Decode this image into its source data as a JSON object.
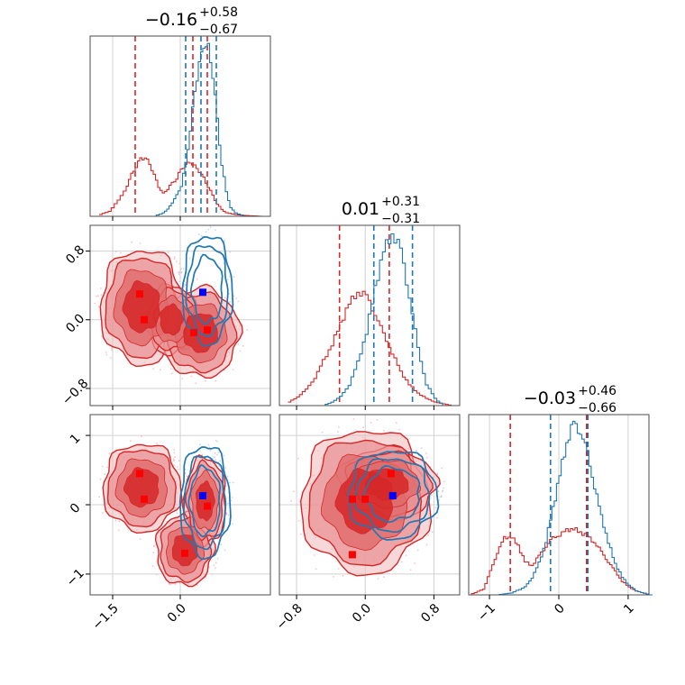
{
  "colors": {
    "red": "#d62728",
    "blue": "#1f77b4",
    "red_marker": "#ff0000",
    "blue_marker": "#0000ff",
    "grid": "#d0d0d0",
    "pink_points": "#f7a8b8",
    "lightblue_points": "#a9c6e8"
  },
  "chart_data": {
    "type": "corner",
    "params": [
      {
        "title": {
          "main": "−0.16",
          "sup": "+0.58",
          "sub": "−0.67"
        },
        "range": [
          -2.0,
          2.0
        ],
        "ticks": [
          -1.5,
          0.0
        ],
        "tick_labels": [
          "−1.5",
          "0.0"
        ]
      },
      {
        "title": {
          "main": "0.01",
          "sup": "+0.31",
          "sub": "−0.31"
        },
        "range": [
          -1.0,
          1.1
        ],
        "ticks": [
          -0.8,
          0.0,
          0.8
        ],
        "tick_labels": [
          "−0.8",
          "0.0",
          "0.8"
        ]
      },
      {
        "title": {
          "main": "−0.03",
          "sup": "+0.46",
          "sub": "−0.66"
        },
        "range": [
          -1.3,
          1.3
        ],
        "ticks": [
          -1,
          0,
          1
        ],
        "tick_labels": [
          "−1",
          "0",
          "1"
        ]
      }
    ],
    "diagonal": [
      {
        "param": 0,
        "red": {
          "x": [
            -1.8,
            -1.6,
            -1.4,
            -1.2,
            -1.1,
            -1.0,
            -0.9,
            -0.8,
            -0.7,
            -0.6,
            -0.5,
            -0.4,
            -0.3,
            -0.2,
            -0.1,
            0.0,
            0.1,
            0.2,
            0.3,
            0.4,
            0.5,
            0.6,
            0.7,
            0.8,
            0.9,
            1.0,
            1.2,
            1.4,
            1.6,
            1.8
          ],
          "y": [
            0.01,
            0.03,
            0.09,
            0.18,
            0.24,
            0.29,
            0.33,
            0.34,
            0.3,
            0.24,
            0.17,
            0.13,
            0.16,
            0.19,
            0.22,
            0.27,
            0.3,
            0.31,
            0.29,
            0.26,
            0.22,
            0.17,
            0.12,
            0.07,
            0.04,
            0.02,
            0.01,
            0.005,
            0.002,
            0.0
          ],
          "quantiles": [
            -1.0,
            0.28,
            0.6
          ]
        },
        "blue": {
          "x": [
            -0.6,
            -0.4,
            -0.3,
            -0.2,
            -0.1,
            0.0,
            0.1,
            0.2,
            0.3,
            0.4,
            0.5,
            0.6,
            0.7,
            0.8,
            0.9,
            1.0,
            1.1,
            1.2,
            1.4
          ],
          "y": [
            0.0,
            0.02,
            0.04,
            0.08,
            0.12,
            0.18,
            0.3,
            0.5,
            0.72,
            0.88,
            0.99,
            0.97,
            0.82,
            0.55,
            0.3,
            0.14,
            0.05,
            0.02,
            0.0
          ],
          "quantiles": [
            0.12,
            0.46,
            0.8
          ]
        }
      },
      {
        "param": 1,
        "red": {
          "x": [
            -0.9,
            -0.8,
            -0.7,
            -0.6,
            -0.5,
            -0.4,
            -0.3,
            -0.2,
            -0.1,
            0.0,
            0.1,
            0.2,
            0.3,
            0.4,
            0.5,
            0.6,
            0.7,
            0.8,
            0.9,
            1.0
          ],
          "y": [
            0.02,
            0.05,
            0.09,
            0.16,
            0.25,
            0.35,
            0.46,
            0.58,
            0.64,
            0.62,
            0.52,
            0.4,
            0.3,
            0.19,
            0.12,
            0.07,
            0.04,
            0.02,
            0.01,
            0.0
          ],
          "quantiles": [
            -0.3,
            0.28
          ]
        },
        "blue": {
          "x": [
            -0.5,
            -0.4,
            -0.3,
            -0.2,
            -0.1,
            0.0,
            0.1,
            0.2,
            0.3,
            0.4,
            0.5,
            0.6,
            0.7,
            0.8,
            0.9
          ],
          "y": [
            0.0,
            0.02,
            0.05,
            0.12,
            0.24,
            0.42,
            0.66,
            0.88,
            0.97,
            0.88,
            0.62,
            0.32,
            0.12,
            0.04,
            0.0
          ],
          "quantiles": [
            0.1,
            0.55
          ]
        }
      },
      {
        "param": 2,
        "red": {
          "x": [
            -1.3,
            -1.1,
            -1.0,
            -0.9,
            -0.8,
            -0.7,
            -0.6,
            -0.5,
            -0.4,
            -0.3,
            -0.2,
            -0.1,
            0.0,
            0.1,
            0.2,
            0.3,
            0.4,
            0.5,
            0.6,
            0.7,
            0.8,
            0.9,
            1.0,
            1.1,
            1.3
          ],
          "y": [
            0.0,
            0.03,
            0.12,
            0.22,
            0.29,
            0.3,
            0.25,
            0.17,
            0.15,
            0.2,
            0.25,
            0.29,
            0.31,
            0.33,
            0.34,
            0.32,
            0.3,
            0.27,
            0.22,
            0.17,
            0.12,
            0.07,
            0.04,
            0.02,
            0.0
          ],
          "quantiles": [
            -0.7,
            0.4
          ]
        },
        "blue": {
          "x": [
            -0.9,
            -0.7,
            -0.5,
            -0.4,
            -0.3,
            -0.2,
            -0.1,
            0.0,
            0.1,
            0.2,
            0.3,
            0.4,
            0.5,
            0.6,
            0.7,
            0.8,
            0.9,
            1.0,
            1.1,
            1.3
          ],
          "y": [
            0.0,
            0.01,
            0.04,
            0.09,
            0.16,
            0.28,
            0.44,
            0.62,
            0.78,
            0.88,
            0.84,
            0.72,
            0.56,
            0.4,
            0.27,
            0.16,
            0.09,
            0.05,
            0.02,
            0.0
          ],
          "quantiles": [
            -0.12,
            0.42
          ]
        }
      }
    ],
    "contours": [
      {
        "x_param": 0,
        "y_param": 1,
        "red_modes": [
          {
            "x": -0.9,
            "y": 0.3
          },
          {
            "x": -0.8,
            "y": 0.0
          },
          {
            "x": 0.3,
            "y": -0.15
          },
          {
            "x": 0.6,
            "y": -0.12
          }
        ],
        "blue_modes": [
          {
            "x": 0.5,
            "y": 0.32
          }
        ],
        "red_shape": [
          {
            "cx": -0.85,
            "cy": 0.15,
            "rx": 0.8,
            "ry": 0.58
          },
          {
            "cx": 0.45,
            "cy": -0.15,
            "rx": 0.75,
            "ry": 0.45
          },
          {
            "cx": -0.2,
            "cy": 0.0,
            "rx": 0.5,
            "ry": 0.35
          }
        ],
        "blue_shape": [
          {
            "cx": 0.6,
            "cy": 0.35,
            "rx": 0.48,
            "ry": 0.55
          }
        ]
      },
      {
        "x_param": 0,
        "y_param": 2,
        "red_modes": [
          {
            "x": -0.9,
            "y": 0.45
          },
          {
            "x": -0.8,
            "y": 0.08
          },
          {
            "x": 0.1,
            "y": -0.7
          },
          {
            "x": 0.6,
            "y": -0.02
          }
        ],
        "blue_modes": [
          {
            "x": 0.5,
            "y": 0.13
          }
        ],
        "red_shape": [
          {
            "cx": -0.85,
            "cy": 0.25,
            "rx": 0.75,
            "ry": 0.55
          },
          {
            "cx": 0.1,
            "cy": -0.65,
            "rx": 0.55,
            "ry": 0.45
          },
          {
            "cx": 0.55,
            "cy": 0.05,
            "rx": 0.4,
            "ry": 0.55
          }
        ],
        "blue_shape": [
          {
            "cx": 0.55,
            "cy": 0.05,
            "rx": 0.48,
            "ry": 0.7
          }
        ]
      },
      {
        "x_param": 1,
        "y_param": 2,
        "red_modes": [
          {
            "x": 0.3,
            "y": 0.45
          },
          {
            "x": -0.15,
            "y": 0.08
          },
          {
            "x": 0.0,
            "y": 0.08
          },
          {
            "x": -0.15,
            "y": -0.72
          }
        ],
        "blue_modes": [
          {
            "x": 0.32,
            "y": 0.13
          }
        ],
        "red_shape": [
          {
            "cx": 0.0,
            "cy": 0.05,
            "rx": 0.65,
            "ry": 0.9
          },
          {
            "cx": 0.25,
            "cy": 0.3,
            "rx": 0.5,
            "ry": 0.45
          }
        ],
        "blue_shape": [
          {
            "cx": 0.32,
            "cy": 0.15,
            "rx": 0.45,
            "ry": 0.55
          }
        ]
      }
    ]
  }
}
